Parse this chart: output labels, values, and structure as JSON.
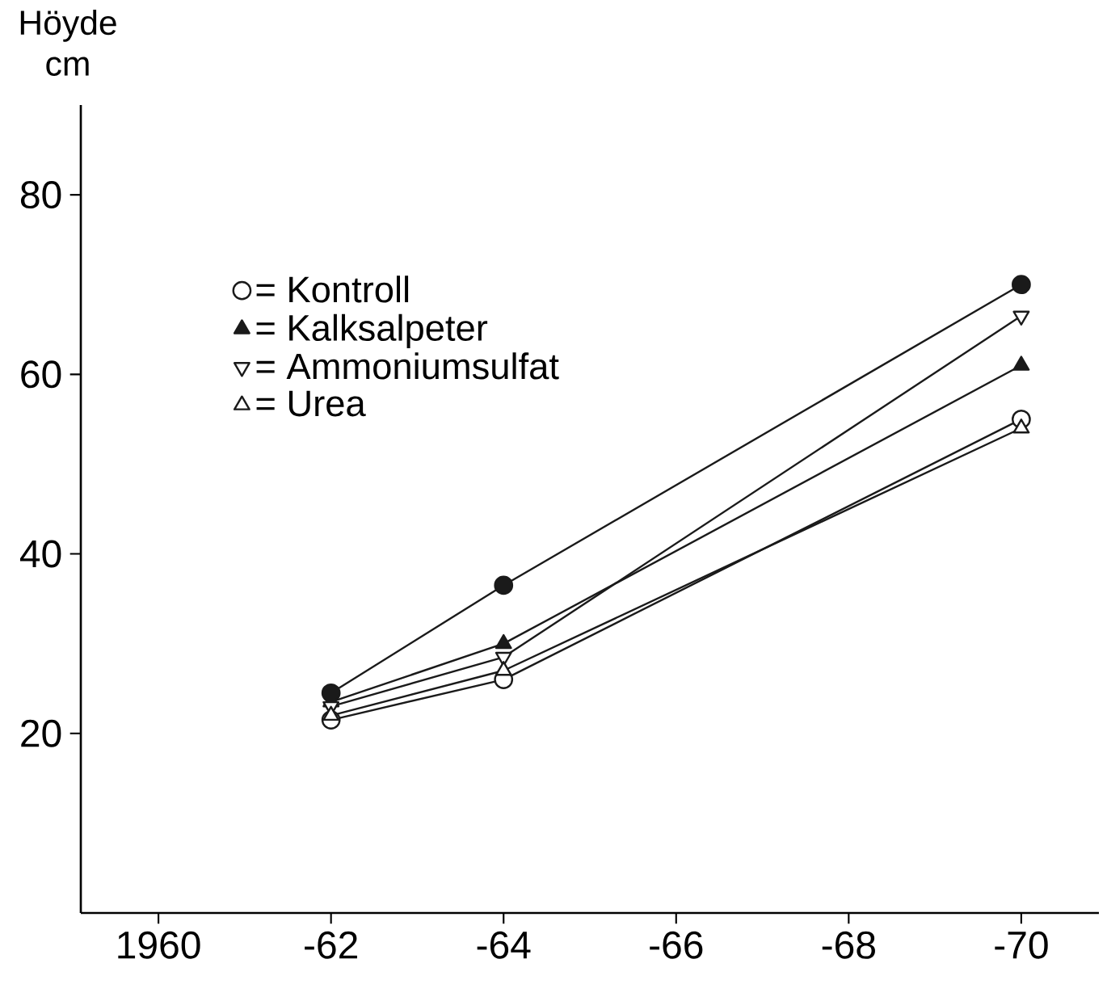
{
  "chart_data": {
    "type": "line",
    "ylabel": "Höyde cm",
    "ylim": [
      0,
      90
    ],
    "categories": [
      "1960",
      "-62",
      "-64",
      "-66",
      "-68",
      "-70"
    ],
    "yticks": [
      20,
      40,
      60,
      80
    ],
    "legend": "top left",
    "line_style": "solid",
    "series": [
      {
        "name": "= Kontroll",
        "color": "#1a1a1a",
        "marker": "circle-open",
        "values": [
          null,
          21.5,
          26,
          null,
          null,
          55
        ]
      },
      {
        "name": "= Kalksalpeter",
        "color": "#1a1a1a",
        "marker": "triangle",
        "values": [
          null,
          23.5,
          30,
          null,
          null,
          61
        ]
      },
      {
        "name": "= Ammoniumsulfat",
        "color": "#1a1a1a",
        "marker": "triangle-down-open",
        "values": [
          null,
          23,
          28.5,
          null,
          null,
          66.5
        ]
      },
      {
        "name": "= Urea",
        "color": "#1a1a1a",
        "marker": "triangle-open",
        "values": [
          null,
          22,
          27,
          null,
          null,
          54
        ]
      },
      {
        "color": "#1a1a1a",
        "marker": "circle",
        "values": [
          null,
          24.5,
          36.5,
          null,
          null,
          70
        ]
      }
    ]
  }
}
